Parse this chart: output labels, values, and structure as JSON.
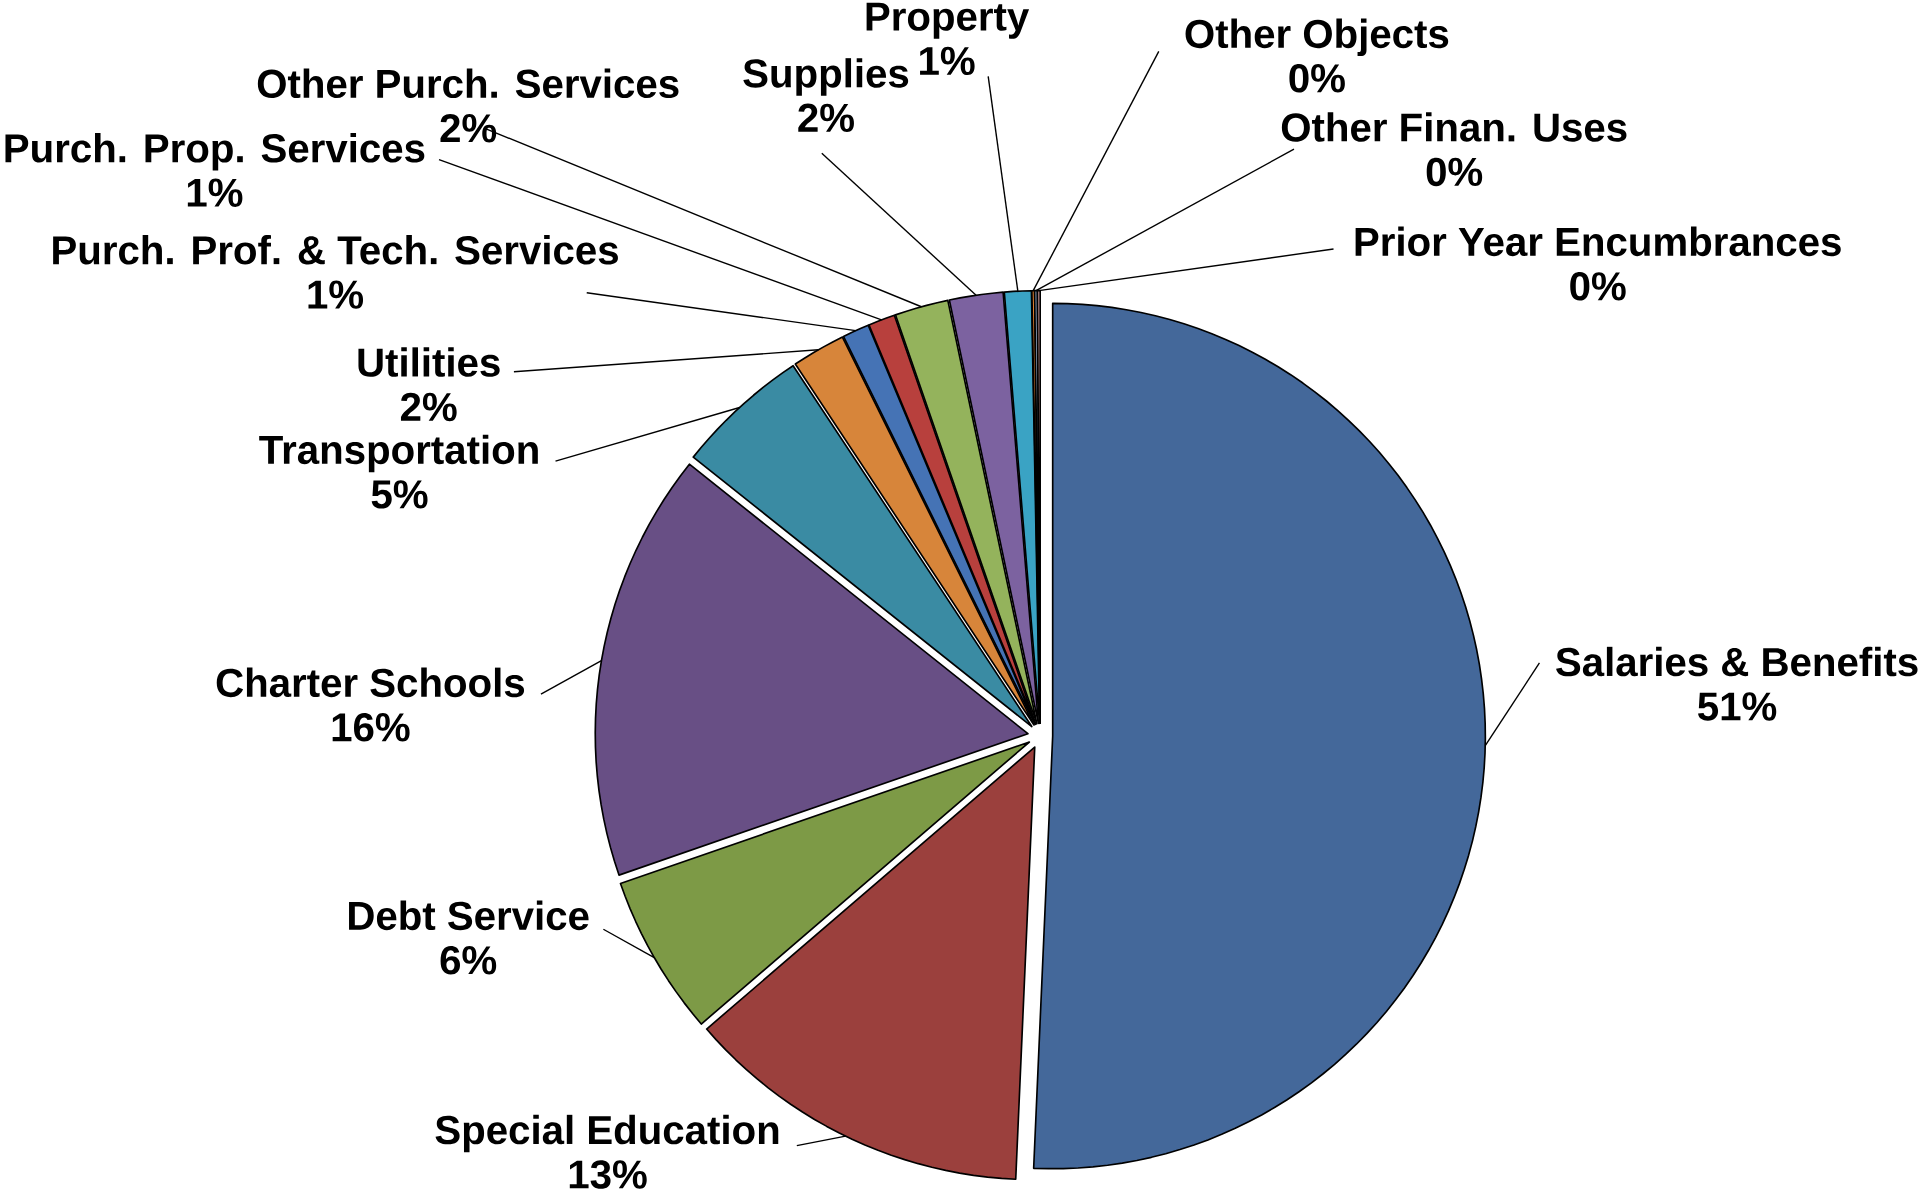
{
  "chart_data": {
    "type": "pie",
    "categories": [
      "Salaries & Benefits",
      "Special Education",
      "Debt Service",
      "Charter Schools",
      "Transportation",
      "Utilities",
      "Purch. Prof. & Tech. Services",
      "Purch. Prop. Services",
      "Other Purch. Services",
      "Supplies",
      "Property",
      "Other Objects",
      "Other Finan. Uses",
      "Prior Year Encumbrances"
    ],
    "values": [
      50.7,
      13,
      6,
      16,
      5,
      2,
      1,
      1,
      2,
      2,
      1,
      0.1,
      0.1,
      0.1
    ],
    "value_labels": [
      "51%",
      "13%",
      "6%",
      "16%",
      "5%",
      "2%",
      "1%",
      "1%",
      "2%",
      "2%",
      "1%",
      "0%",
      "0%",
      "0%"
    ],
    "colors": [
      "#44689A",
      "#9B403D",
      "#7D9A46",
      "#684F85",
      "#3A8BA3",
      "#D7853A",
      "#4573B5",
      "#B8403D",
      "#94B35C",
      "#7C62A0",
      "#3AA3C4",
      "#EE8A35",
      "#A7BCDD",
      "#D9A09F"
    ]
  }
}
